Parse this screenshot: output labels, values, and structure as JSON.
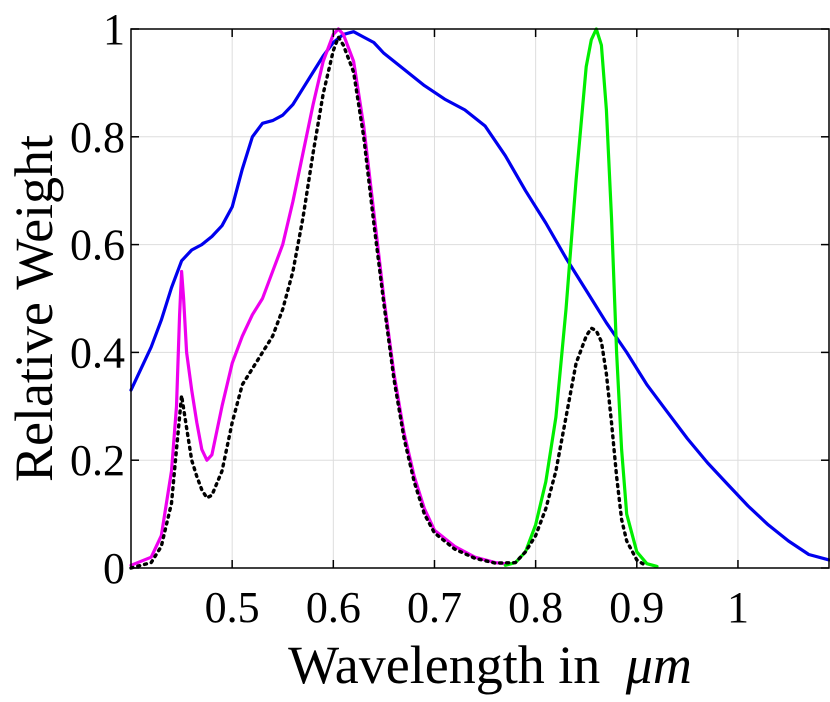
{
  "chart_data": {
    "type": "line",
    "title": "",
    "xlabel": "Wavelength in",
    "xlabel_symbol": "μm",
    "ylabel": "Relative Weight",
    "xlim": [
      0.4,
      1.09
    ],
    "ylim": [
      0,
      1
    ],
    "xticks": [
      0.5,
      0.6,
      0.7,
      0.8,
      0.9,
      1
    ],
    "xtick_labels": [
      "0.5",
      "0.6",
      "0.7",
      "0.8",
      "0.9",
      "1"
    ],
    "yticks": [
      0,
      0.2,
      0.4,
      0.6,
      0.8,
      1
    ],
    "ytick_labels": [
      "0",
      "0.2",
      "0.4",
      "0.6",
      "0.8",
      "1"
    ],
    "grid": true,
    "legend": "none",
    "series": [
      {
        "color": "#0000ee",
        "style": "solid",
        "points": [
          [
            0.4,
            0.33
          ],
          [
            0.41,
            0.37
          ],
          [
            0.42,
            0.41
          ],
          [
            0.43,
            0.46
          ],
          [
            0.44,
            0.52
          ],
          [
            0.45,
            0.57
          ],
          [
            0.46,
            0.59
          ],
          [
            0.47,
            0.6
          ],
          [
            0.48,
            0.615
          ],
          [
            0.49,
            0.635
          ],
          [
            0.5,
            0.67
          ],
          [
            0.51,
            0.74
          ],
          [
            0.52,
            0.8
          ],
          [
            0.53,
            0.825
          ],
          [
            0.54,
            0.83
          ],
          [
            0.55,
            0.84
          ],
          [
            0.56,
            0.86
          ],
          [
            0.57,
            0.89
          ],
          [
            0.58,
            0.92
          ],
          [
            0.59,
            0.95
          ],
          [
            0.6,
            0.975
          ],
          [
            0.61,
            0.99
          ],
          [
            0.62,
            0.995
          ],
          [
            0.63,
            0.985
          ],
          [
            0.64,
            0.975
          ],
          [
            0.65,
            0.955
          ],
          [
            0.67,
            0.925
          ],
          [
            0.69,
            0.895
          ],
          [
            0.71,
            0.87
          ],
          [
            0.73,
            0.85
          ],
          [
            0.75,
            0.82
          ],
          [
            0.77,
            0.765
          ],
          [
            0.79,
            0.7
          ],
          [
            0.81,
            0.64
          ],
          [
            0.83,
            0.575
          ],
          [
            0.85,
            0.515
          ],
          [
            0.87,
            0.455
          ],
          [
            0.89,
            0.4
          ],
          [
            0.91,
            0.34
          ],
          [
            0.93,
            0.29
          ],
          [
            0.95,
            0.24
          ],
          [
            0.97,
            0.195
          ],
          [
            0.99,
            0.155
          ],
          [
            1.01,
            0.115
          ],
          [
            1.03,
            0.08
          ],
          [
            1.05,
            0.05
          ],
          [
            1.07,
            0.025
          ],
          [
            1.09,
            0.015
          ]
        ]
      },
      {
        "color": "#ee00ee",
        "style": "solid",
        "points": [
          [
            0.4,
            0.005
          ],
          [
            0.42,
            0.02
          ],
          [
            0.43,
            0.06
          ],
          [
            0.44,
            0.18
          ],
          [
            0.445,
            0.3
          ],
          [
            0.448,
            0.47
          ],
          [
            0.45,
            0.55
          ],
          [
            0.452,
            0.5
          ],
          [
            0.455,
            0.4
          ],
          [
            0.46,
            0.33
          ],
          [
            0.465,
            0.27
          ],
          [
            0.47,
            0.22
          ],
          [
            0.475,
            0.2
          ],
          [
            0.48,
            0.21
          ],
          [
            0.49,
            0.3
          ],
          [
            0.5,
            0.38
          ],
          [
            0.51,
            0.43
          ],
          [
            0.52,
            0.47
          ],
          [
            0.53,
            0.5
          ],
          [
            0.54,
            0.55
          ],
          [
            0.55,
            0.6
          ],
          [
            0.56,
            0.68
          ],
          [
            0.57,
            0.77
          ],
          [
            0.58,
            0.86
          ],
          [
            0.59,
            0.94
          ],
          [
            0.6,
            0.99
          ],
          [
            0.605,
            1.0
          ],
          [
            0.61,
            0.99
          ],
          [
            0.62,
            0.94
          ],
          [
            0.63,
            0.82
          ],
          [
            0.64,
            0.66
          ],
          [
            0.65,
            0.5
          ],
          [
            0.66,
            0.36
          ],
          [
            0.67,
            0.25
          ],
          [
            0.68,
            0.17
          ],
          [
            0.69,
            0.11
          ],
          [
            0.7,
            0.07
          ],
          [
            0.72,
            0.04
          ],
          [
            0.74,
            0.02
          ],
          [
            0.76,
            0.01
          ],
          [
            0.77,
            0.008
          ]
        ]
      },
      {
        "color": "#00ee00",
        "style": "solid",
        "points": [
          [
            0.77,
            0.005
          ],
          [
            0.78,
            0.01
          ],
          [
            0.79,
            0.03
          ],
          [
            0.8,
            0.08
          ],
          [
            0.81,
            0.16
          ],
          [
            0.82,
            0.28
          ],
          [
            0.83,
            0.48
          ],
          [
            0.84,
            0.72
          ],
          [
            0.85,
            0.93
          ],
          [
            0.855,
            0.98
          ],
          [
            0.86,
            1.0
          ],
          [
            0.865,
            0.97
          ],
          [
            0.87,
            0.85
          ],
          [
            0.875,
            0.65
          ],
          [
            0.88,
            0.4
          ],
          [
            0.885,
            0.22
          ],
          [
            0.89,
            0.1
          ],
          [
            0.9,
            0.03
          ],
          [
            0.91,
            0.008
          ],
          [
            0.92,
            0.003
          ]
        ]
      },
      {
        "color": "#000000",
        "style": "dotted",
        "points": [
          [
            0.4,
            0.0
          ],
          [
            0.42,
            0.01
          ],
          [
            0.43,
            0.04
          ],
          [
            0.44,
            0.12
          ],
          [
            0.445,
            0.22
          ],
          [
            0.45,
            0.32
          ],
          [
            0.455,
            0.26
          ],
          [
            0.46,
            0.2
          ],
          [
            0.465,
            0.17
          ],
          [
            0.47,
            0.145
          ],
          [
            0.475,
            0.13
          ],
          [
            0.48,
            0.135
          ],
          [
            0.49,
            0.18
          ],
          [
            0.5,
            0.27
          ],
          [
            0.51,
            0.34
          ],
          [
            0.52,
            0.37
          ],
          [
            0.53,
            0.4
          ],
          [
            0.54,
            0.43
          ],
          [
            0.55,
            0.48
          ],
          [
            0.56,
            0.55
          ],
          [
            0.57,
            0.65
          ],
          [
            0.58,
            0.77
          ],
          [
            0.59,
            0.88
          ],
          [
            0.6,
            0.96
          ],
          [
            0.605,
            0.985
          ],
          [
            0.61,
            0.97
          ],
          [
            0.62,
            0.92
          ],
          [
            0.63,
            0.8
          ],
          [
            0.64,
            0.64
          ],
          [
            0.65,
            0.49
          ],
          [
            0.66,
            0.35
          ],
          [
            0.67,
            0.24
          ],
          [
            0.68,
            0.16
          ],
          [
            0.69,
            0.1
          ],
          [
            0.7,
            0.065
          ],
          [
            0.72,
            0.035
          ],
          [
            0.74,
            0.018
          ],
          [
            0.76,
            0.009
          ],
          [
            0.78,
            0.01
          ],
          [
            0.79,
            0.03
          ],
          [
            0.8,
            0.06
          ],
          [
            0.81,
            0.11
          ],
          [
            0.82,
            0.18
          ],
          [
            0.83,
            0.28
          ],
          [
            0.84,
            0.38
          ],
          [
            0.85,
            0.43
          ],
          [
            0.855,
            0.445
          ],
          [
            0.86,
            0.44
          ],
          [
            0.865,
            0.42
          ],
          [
            0.87,
            0.36
          ],
          [
            0.875,
            0.27
          ],
          [
            0.88,
            0.17
          ],
          [
            0.885,
            0.09
          ],
          [
            0.89,
            0.05
          ],
          [
            0.9,
            0.015
          ],
          [
            0.91,
            0.003
          ]
        ]
      }
    ]
  }
}
